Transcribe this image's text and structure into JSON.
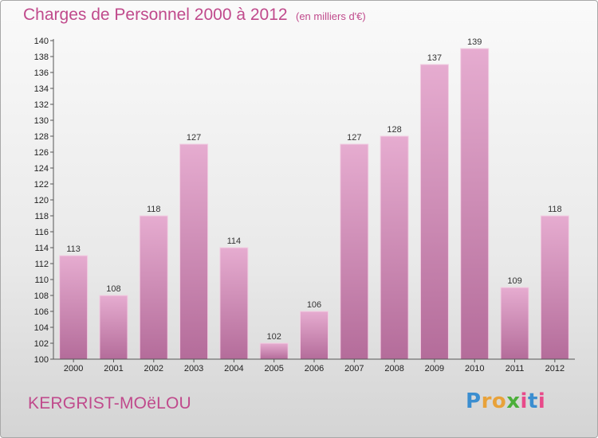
{
  "header": {
    "title": "Charges de Personnel 2000 à 2012",
    "subtitle": "(en milliers d'€)"
  },
  "footer": {
    "commune": "KERGRIST-MOëLOU",
    "logo_letters": [
      "P",
      "r",
      "o",
      "x",
      "i",
      "t",
      "i"
    ],
    "logo_colors": [
      "#3b8ed0",
      "#e8a23a",
      "#e8a23a",
      "#4caf3a",
      "#e84a8a",
      "#3b8ed0",
      "#e84a8a"
    ]
  },
  "colors": {
    "bar_top": "#e6acd0",
    "bar_bottom": "#b46c9a",
    "bar_edge": "#f2cfe3",
    "axis": "#555555"
  },
  "chart_data": {
    "type": "bar",
    "title": "Charges de Personnel 2000 à 2012",
    "subtitle": "(en milliers d'€)",
    "xlabel": "",
    "ylabel": "",
    "categories": [
      "2000",
      "2001",
      "2002",
      "2003",
      "2004",
      "2005",
      "2006",
      "2007",
      "2008",
      "2009",
      "2010",
      "2011",
      "2012"
    ],
    "values": [
      113,
      108,
      118,
      127,
      114,
      102,
      106,
      127,
      128,
      137,
      139,
      109,
      118
    ],
    "ylim": [
      100,
      140
    ],
    "ytick_step": 2,
    "grid": false,
    "legend": "none"
  }
}
